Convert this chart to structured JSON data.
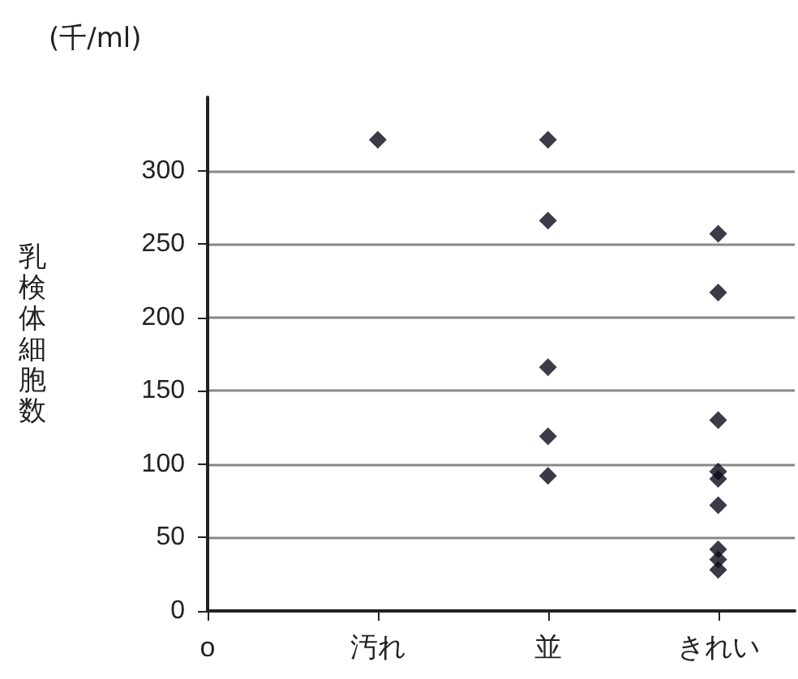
{
  "chart_data": {
    "type": "scatter",
    "ylabel": "乳検体細胞数",
    "annotations": [
      "(千/ml)"
    ],
    "categories": [
      "o",
      "汚れ",
      "並",
      "きれい"
    ],
    "series": [
      {
        "color": "#0a0a1a",
        "values": [
          null,
          321,
          321,
          257
        ]
      },
      {
        "color": "#0a0a1a",
        "values": [
          null,
          null,
          266,
          217
        ]
      },
      {
        "color": "#0a0a1a",
        "values": [
          null,
          null,
          166,
          130
        ]
      },
      {
        "color": "#0a0a1a",
        "values": [
          null,
          null,
          119,
          95
        ]
      },
      {
        "color": "#0a0a1a",
        "values": [
          null,
          null,
          92,
          90
        ]
      },
      {
        "color": "#0a0a1a",
        "values": [
          null,
          null,
          null,
          72
        ]
      },
      {
        "color": "#0a0a1a",
        "values": [
          null,
          null,
          null,
          42
        ]
      },
      {
        "color": "#0a0a1a",
        "values": [
          null,
          null,
          null,
          35
        ]
      },
      {
        "color": "#0a0a1a",
        "values": [
          null,
          null,
          null,
          28
        ]
      }
    ],
    "ylim": [
      0,
      350
    ],
    "yticks": [
      0,
      50,
      100,
      150,
      200,
      250,
      300
    ],
    "grid": "y",
    "marker": "diamond"
  }
}
